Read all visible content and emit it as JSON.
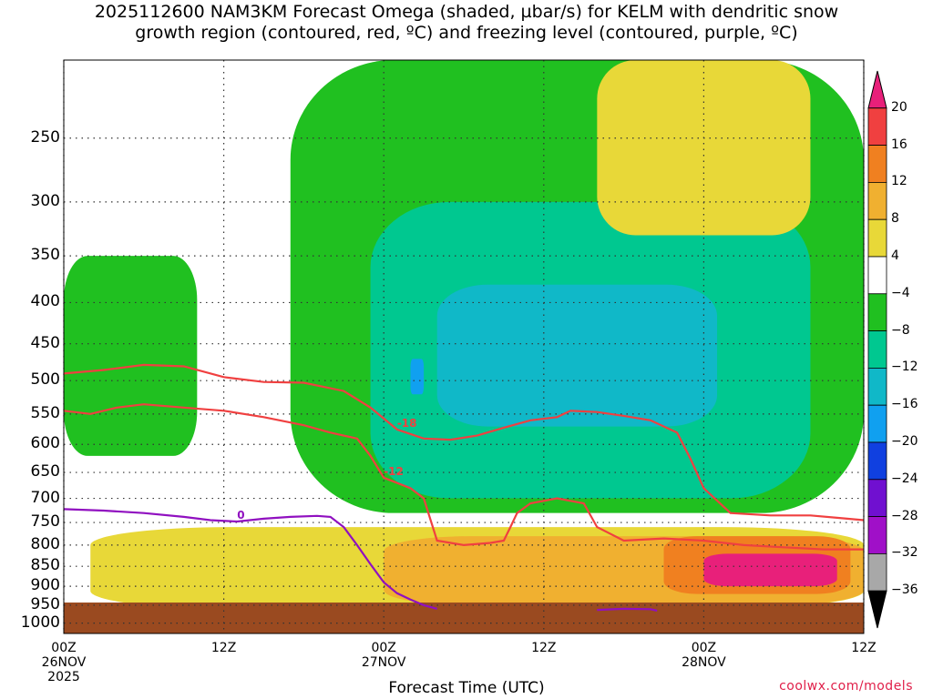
{
  "title": {
    "line1": "2025112600 NAM3KM Forecast Omega (shaded, µbar/s) for KELM with dendritic snow",
    "line2": "growth region (contoured, red, ºC) and freezing level (contoured, purple, ºC)"
  },
  "chart_data": {
    "type": "heatmap",
    "title": "2025112600 NAM3KM Forecast Omega (shaded, µbar/s) for KELM with dendritic snow growth region (contoured, red, ºC) and freezing level (contoured, purple, ºC)",
    "xlabel": "Forecast Time (UTC)",
    "ylabel": "",
    "x_range_hours": [
      0,
      60
    ],
    "y_range_hpa": [
      1000,
      200
    ],
    "y_scale": "log",
    "grid": true,
    "y_ticks": [
      250,
      300,
      350,
      400,
      450,
      500,
      550,
      600,
      650,
      700,
      750,
      800,
      850,
      900,
      950,
      1000
    ],
    "x_ticks": [
      {
        "hour": 0,
        "label": "00Z",
        "date": "26NOV",
        "year": "2025"
      },
      {
        "hour": 12,
        "label": "12Z",
        "date": "",
        "year": ""
      },
      {
        "hour": 24,
        "label": "00Z",
        "date": "27NOV",
        "year": ""
      },
      {
        "hour": 36,
        "label": "12Z",
        "date": "",
        "year": ""
      },
      {
        "hour": 48,
        "label": "00Z",
        "date": "28NOV",
        "year": ""
      },
      {
        "hour": 60,
        "label": "12Z",
        "date": "",
        "year": ""
      }
    ],
    "colorbar": {
      "labels": [
        "20",
        "16",
        "12",
        "8",
        "4",
        "−4",
        "−8",
        "−12",
        "−16",
        "−20",
        "−24",
        "−28",
        "−32",
        "−36"
      ],
      "colors": [
        "#e8207a",
        "#f04040",
        "#f08020",
        "#f0b030",
        "#e8d838",
        "#ffffff",
        "#20c020",
        "#00c890",
        "#10b8c8",
        "#10a0f0",
        "#1040e0",
        "#7010d0",
        "#a010c8",
        "#a8a8a8",
        "#000000"
      ]
    },
    "contours": [
      {
        "name": "dendritic-18",
        "color": "#f04040",
        "label": "-18",
        "points": [
          [
            0,
            490
          ],
          [
            3,
            485
          ],
          [
            6,
            478
          ],
          [
            9,
            480
          ],
          [
            12,
            495
          ],
          [
            15,
            502
          ],
          [
            18,
            503
          ],
          [
            21,
            515
          ],
          [
            23,
            540
          ],
          [
            25,
            575
          ],
          [
            27,
            590
          ],
          [
            29,
            592
          ],
          [
            31,
            585
          ],
          [
            33,
            572
          ],
          [
            35,
            560
          ],
          [
            37,
            555
          ],
          [
            38,
            545
          ],
          [
            40,
            547
          ],
          [
            42,
            553
          ],
          [
            44,
            560
          ],
          [
            46,
            580
          ],
          [
            47,
            625
          ],
          [
            48,
            680
          ],
          [
            50,
            730
          ],
          [
            53,
            735
          ],
          [
            56,
            735
          ],
          [
            58,
            740
          ],
          [
            60,
            745
          ]
        ]
      },
      {
        "name": "dendritic-12",
        "color": "#f04040",
        "label": "-12",
        "points": [
          [
            0,
            545
          ],
          [
            2,
            550
          ],
          [
            4,
            540
          ],
          [
            6,
            535
          ],
          [
            9,
            540
          ],
          [
            12,
            545
          ],
          [
            15,
            555
          ],
          [
            18,
            568
          ],
          [
            20,
            580
          ],
          [
            22,
            590
          ],
          [
            23,
            620
          ],
          [
            24,
            660
          ],
          [
            26,
            680
          ],
          [
            27,
            700
          ],
          [
            28,
            790
          ],
          [
            30,
            800
          ],
          [
            32,
            795
          ],
          [
            33,
            790
          ],
          [
            33.5,
            760
          ],
          [
            34,
            730
          ],
          [
            35,
            710
          ],
          [
            36,
            705
          ],
          [
            37,
            700
          ],
          [
            38,
            705
          ],
          [
            39,
            710
          ],
          [
            40,
            760
          ],
          [
            42,
            790
          ],
          [
            45,
            785
          ],
          [
            48,
            790
          ],
          [
            51,
            800
          ],
          [
            54,
            805
          ],
          [
            57,
            810
          ],
          [
            60,
            810
          ]
        ]
      },
      {
        "name": "freezing-0",
        "color": "#9010c0",
        "label": "0",
        "points": [
          [
            0,
            722
          ],
          [
            3,
            725
          ],
          [
            6,
            730
          ],
          [
            9,
            738
          ],
          [
            11,
            745
          ],
          [
            13,
            748
          ],
          [
            15,
            742
          ],
          [
            17,
            738
          ],
          [
            19,
            736
          ],
          [
            20,
            738
          ],
          [
            21,
            760
          ],
          [
            22,
            800
          ],
          [
            23,
            845
          ],
          [
            24,
            890
          ],
          [
            25,
            918
          ],
          [
            26,
            935
          ],
          [
            27,
            950
          ],
          [
            28,
            960
          ]
        ]
      },
      {
        "name": "freezing-0-b",
        "color": "#9010c0",
        "label": "",
        "points": [
          [
            40,
            963
          ],
          [
            42,
            960
          ],
          [
            44,
            961
          ],
          [
            44.5,
            965
          ]
        ]
      }
    ],
    "omega_patches_ubar_per_s": [
      {
        "value": -6,
        "x": [
          0,
          10
        ],
        "y": [
          350,
          620
        ]
      },
      {
        "value": -6,
        "x": [
          17,
          60
        ],
        "y": [
          200,
          730
        ]
      },
      {
        "value": -10,
        "x": [
          23,
          56
        ],
        "y": [
          300,
          700
        ]
      },
      {
        "value": -14,
        "x": [
          28,
          49
        ],
        "y": [
          380,
          570
        ]
      },
      {
        "value": -18,
        "x": [
          26,
          27
        ],
        "y": [
          470,
          520
        ]
      },
      {
        "value": 6,
        "x": [
          2,
          60
        ],
        "y": [
          760,
          960
        ]
      },
      {
        "value": 10,
        "x": [
          24,
          60
        ],
        "y": [
          780,
          950
        ]
      },
      {
        "value": 14,
        "x": [
          45,
          59
        ],
        "y": [
          780,
          920
        ]
      },
      {
        "value": 20,
        "x": [
          48,
          58
        ],
        "y": [
          820,
          900
        ]
      },
      {
        "value": 6,
        "x": [
          40,
          56
        ],
        "y": [
          200,
          330
        ]
      }
    ]
  },
  "credit": "coolwx.com/models"
}
